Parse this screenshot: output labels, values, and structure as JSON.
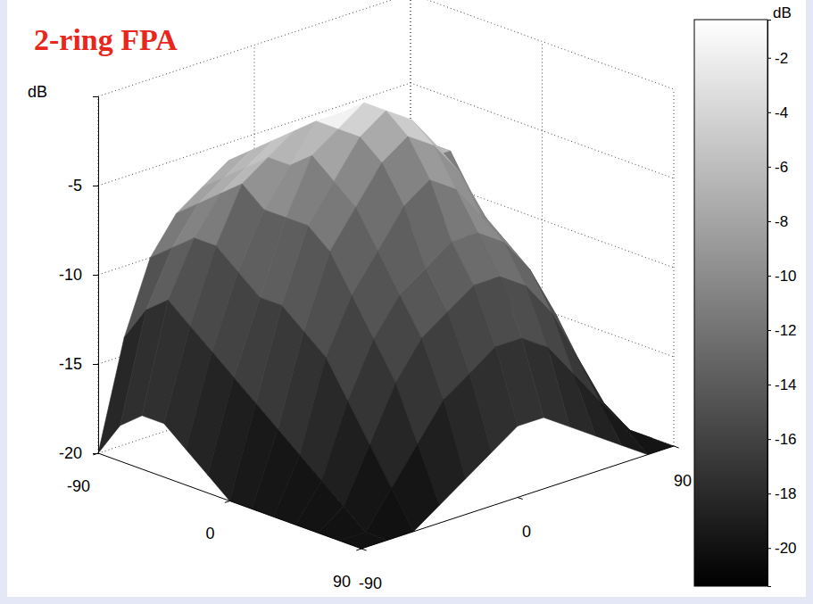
{
  "chart_data": {
    "type": "surface",
    "title": "2-ring FPA",
    "grid": true,
    "x": [
      -90,
      -75,
      -60,
      -45,
      -30,
      -15,
      0,
      15,
      30,
      45,
      60,
      75,
      90
    ],
    "y": [
      -90,
      -75,
      -60,
      -45,
      -30,
      -15,
      0,
      15,
      30,
      45,
      60,
      75,
      90
    ],
    "z": [
      [
        -20,
        -14,
        -10,
        -8,
        -7,
        -6,
        -6,
        -7,
        -8,
        -9,
        -8,
        -10,
        -13
      ],
      [
        -18,
        -12,
        -9,
        -7,
        -6,
        -5,
        -5,
        -6,
        -7,
        -8,
        -7,
        -9,
        -12
      ],
      [
        -17,
        -11,
        -8,
        -6,
        -5,
        -4,
        -4,
        -5,
        -6,
        -7,
        -7,
        -7,
        -12
      ],
      [
        -17,
        -12,
        -8,
        -5,
        -4,
        -3,
        -3,
        -4,
        -5,
        -6,
        -7,
        -7,
        -13
      ],
      [
        -18,
        -13,
        -9,
        -6,
        -4,
        -2,
        -2,
        -3,
        -4,
        -6,
        -8,
        -9,
        -15
      ],
      [
        -19,
        -14,
        -10,
        -6,
        -3,
        -2,
        -1,
        -2,
        -4,
        -6,
        -9,
        -13,
        -16
      ],
      [
        -20,
        -15,
        -10,
        -6,
        -4,
        -2,
        -1,
        -2,
        -4,
        -7,
        -10,
        -14,
        -17
      ],
      [
        -20,
        -16,
        -11,
        -7,
        -5,
        -3,
        -2,
        -3,
        -5,
        -8,
        -11,
        -15,
        -18
      ],
      [
        -20,
        -17,
        -12,
        -9,
        -7,
        -5,
        -4,
        -5,
        -7,
        -9,
        -12,
        -16,
        -19
      ],
      [
        -20,
        -18,
        -14,
        -11,
        -9,
        -8,
        -7,
        -7,
        -8,
        -10,
        -13,
        -17,
        -20
      ],
      [
        -20,
        -19,
        -16,
        -13,
        -11,
        -10,
        -9,
        -9,
        -10,
        -12,
        -15,
        -18,
        -20
      ],
      [
        -20,
        -20,
        -18,
        -16,
        -14,
        -13,
        -12,
        -12,
        -13,
        -15,
        -17,
        -19,
        -20
      ],
      [
        -20,
        -20,
        -20,
        -19,
        -18,
        -17,
        -16,
        -16,
        -17,
        -18,
        -19,
        -20,
        -20
      ]
    ],
    "xlim": [
      -90,
      90
    ],
    "xticks": [
      -90,
      0,
      90
    ],
    "ylim": [
      -90,
      90
    ],
    "yticks": [
      -90,
      0,
      90
    ],
    "zlim": [
      -20,
      0
    ],
    "zticks": [
      -20,
      -15,
      -10,
      -5
    ],
    "zlabel": "dB",
    "colorbar": {
      "label": "dB",
      "range": [
        -21.4,
        -0.6
      ],
      "ticks": [
        -2,
        -4,
        -6,
        -8,
        -10,
        -12,
        -14,
        -16,
        -18,
        -20
      ]
    }
  }
}
